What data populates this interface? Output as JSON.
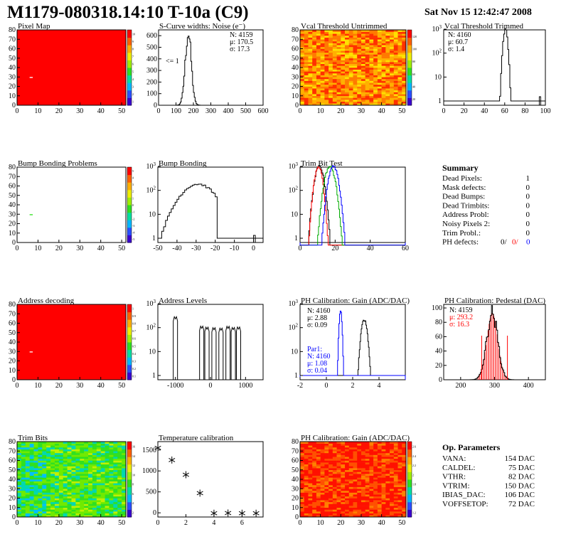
{
  "page": {
    "title": "M1179-080318.14:10 T-10a (C9)",
    "datestamp": "Sat Nov 15 12:42:47 2008"
  },
  "chart_data": [
    {
      "id": "pixel-map",
      "type": "heatmap",
      "title": "Pixel Map",
      "xlim": [
        0,
        52
      ],
      "ylim": [
        0,
        80
      ],
      "xticks": [
        0,
        10,
        20,
        30,
        40,
        50
      ],
      "yticks": [
        0,
        10,
        20,
        30,
        40,
        50,
        60,
        70,
        80
      ],
      "fill": "uniform-max",
      "dead_pixels": [
        [
          6,
          29
        ]
      ],
      "palette_ticks": [
        "10",
        "9",
        "8",
        "7",
        "6",
        "5",
        "4",
        "3",
        "2",
        "1"
      ]
    },
    {
      "id": "noise",
      "type": "line",
      "title": "S-Curve widths: Noise (e⁻)",
      "xlim": [
        0,
        600
      ],
      "log_y": false,
      "yticks": [
        0,
        100,
        200,
        300,
        400,
        500,
        600
      ],
      "xticks": [
        0,
        100,
        200,
        300,
        400,
        500,
        600
      ],
      "peak": {
        "mean": 170.5,
        "sigma": 17.3,
        "height": 620
      },
      "stats": {
        "entries_label": "N: 4159",
        "mean_label": "μ: 170.5",
        "sigma_label": "σ: 17.3"
      },
      "annotation": "<= 1"
    },
    {
      "id": "vcal-untrimmed",
      "type": "heatmap",
      "title": "Vcal Threshold Untrimmed",
      "xlim": [
        0,
        52
      ],
      "ylim": [
        0,
        80
      ],
      "xticks": [
        0,
        10,
        20,
        30,
        40,
        50
      ],
      "yticks": [
        0,
        10,
        20,
        30,
        40,
        50,
        60,
        70,
        80
      ],
      "fill": "noise-warm",
      "palette_ticks": [
        "120",
        "100",
        "80",
        "60",
        "40",
        "20"
      ]
    },
    {
      "id": "vcal-trimmed",
      "type": "line",
      "title": "Vcal Threshold Trimmed",
      "xlim": [
        0,
        100
      ],
      "log_y": true,
      "ylim_exp": [
        0,
        3
      ],
      "xticks": [
        0,
        20,
        40,
        60,
        80,
        100
      ],
      "peak": {
        "mean": 60.7,
        "sigma": 1.4,
        "height": 1500
      },
      "outliers": [
        [
          94,
          1
        ]
      ],
      "stats": {
        "entries_label": "N: 4160",
        "mean_label": "μ: 60.7",
        "sigma_label": "σ:  1.4"
      }
    },
    {
      "id": "bump-problems",
      "type": "heatmap",
      "title": "Bump Bonding Problems",
      "xlim": [
        0,
        52
      ],
      "ylim": [
        0,
        80
      ],
      "xticks": [
        0,
        10,
        20,
        30,
        40,
        50
      ],
      "yticks": [
        0,
        10,
        20,
        30,
        40,
        50,
        60,
        70,
        80
      ],
      "fill": "empty",
      "dead_pixels": [
        [
          6,
          29
        ]
      ],
      "palette_ticks": [
        "5",
        "4",
        "3",
        "2",
        "1",
        "0",
        "-1",
        "-2",
        "-3",
        "-4",
        "-5"
      ]
    },
    {
      "id": "bump-bonding",
      "type": "line",
      "title": "Bump Bonding",
      "xlim": [
        -50,
        5
      ],
      "log_y": true,
      "ylim_exp": [
        0,
        3
      ],
      "xticks": [
        -50,
        -40,
        -30,
        -20,
        -10,
        0
      ],
      "outliers": [
        [
          0,
          1
        ]
      ]
    },
    {
      "id": "trim-bit-test",
      "type": "line",
      "title": "Trim Bit Test",
      "xlim": [
        0,
        60
      ],
      "log_y": true,
      "ylim_exp": [
        0,
        3
      ],
      "xticks": [
        0,
        20,
        40,
        60
      ],
      "series": [
        {
          "color": "#000000",
          "mean": 11,
          "sigma": 1.6
        },
        {
          "color": "#ff0000",
          "mean": 10.5,
          "sigma": 1.4
        },
        {
          "color": "#00aa00",
          "mean": 17,
          "sigma": 1.8
        },
        {
          "color": "#0000ff",
          "mean": 19,
          "sigma": 1.7
        }
      ]
    },
    {
      "id": "address-decoding",
      "type": "heatmap",
      "title": "Address decoding",
      "xlim": [
        0,
        52
      ],
      "ylim": [
        0,
        80
      ],
      "xticks": [
        0,
        10,
        20,
        30,
        40,
        50
      ],
      "yticks": [
        0,
        10,
        20,
        30,
        40,
        50,
        60,
        70,
        80
      ],
      "fill": "uniform-max",
      "dead_pixels": [
        [
          6,
          29
        ]
      ],
      "palette_ticks": [
        "1",
        "0.9",
        "0.8",
        "0.7",
        "0.6",
        "0.5",
        "0.4",
        "0.3",
        "0.2",
        "0.1"
      ]
    },
    {
      "id": "address-levels",
      "type": "line",
      "title": "Address Levels",
      "xlim": [
        -1500,
        1500
      ],
      "log_y": true,
      "ylim_exp": [
        0,
        3
      ],
      "xticks": [
        -1000,
        0,
        1000
      ],
      "peaks": [
        -1000,
        -250,
        -100,
        100,
        300,
        500,
        650,
        800
      ]
    },
    {
      "id": "ph-gain",
      "type": "line",
      "title": "PH Calibration: Gain (ADC/DAC)",
      "xlim": [
        -2,
        6
      ],
      "log_y": true,
      "ylim_exp": [
        0,
        3
      ],
      "xticks": [
        -2,
        0,
        2,
        4
      ],
      "series": [
        {
          "color": "#000000",
          "mean": 2.88,
          "sigma": 0.09
        },
        {
          "color": "#0000ff",
          "mean": 1.08,
          "sigma": 0.04
        }
      ],
      "stats": {
        "entries_label": "N: 4160",
        "mean_label": "μ: 2.88",
        "sigma_label": "σ: 0.09"
      },
      "stats2": {
        "head_label": "Par1:",
        "entries_label": "N: 4160",
        "mean_label": "μ: 1.08",
        "sigma_label": "σ: 0.04"
      }
    },
    {
      "id": "ph-pedestal",
      "type": "line",
      "title": "PH Calibration: Pedestal (DAC)",
      "xlim": [
        150,
        450
      ],
      "log_y": false,
      "yticks": [
        0,
        20,
        40,
        60,
        80,
        100
      ],
      "xticks": [
        200,
        300,
        400
      ],
      "peak": {
        "mean": 293.2,
        "sigma": 16.3,
        "height": 93
      },
      "stats": {
        "entries_label": "N: 4159",
        "mean_label": "μ: 293.2",
        "sigma_label": "σ: 16.3"
      }
    },
    {
      "id": "trim-bits",
      "type": "heatmap",
      "title": "Trim Bits",
      "xlim": [
        0,
        52
      ],
      "ylim": [
        0,
        80
      ],
      "xticks": [
        0,
        10,
        20,
        30,
        40,
        50
      ],
      "yticks": [
        0,
        10,
        20,
        30,
        40,
        50,
        60,
        70,
        80
      ],
      "fill": "noise-green",
      "palette_ticks": [
        "16",
        "14",
        "12",
        "10",
        "8",
        "6",
        "4",
        "2"
      ]
    },
    {
      "id": "temp-calib",
      "type": "scatter",
      "title": "Temperature calibration",
      "xlim": [
        0,
        7.5
      ],
      "ylim": [
        -100,
        1700
      ],
      "yticks": [
        0,
        500,
        1000,
        1500
      ],
      "xticks": [
        0,
        2,
        4,
        6
      ],
      "x": [
        0,
        1,
        2,
        3,
        4,
        5,
        6,
        7
      ],
      "y": [
        1550,
        1260,
        910,
        470,
        -10,
        -5,
        -10,
        -10
      ]
    },
    {
      "id": "ph-gain-map",
      "type": "heatmap",
      "title": "PH Calibration: Gain (ADC/DAC)",
      "xlim": [
        0,
        52
      ],
      "ylim": [
        0,
        80
      ],
      "xticks": [
        0,
        10,
        20,
        30,
        40,
        50
      ],
      "yticks": [
        0,
        10,
        20,
        30,
        40,
        50,
        60,
        70,
        80
      ],
      "fill": "noise-redorange",
      "palette_ticks": [
        "2.6",
        "2.4",
        "2.2",
        "2",
        "1.8",
        "1.6",
        "1.4",
        "1.2"
      ]
    }
  ],
  "summary": {
    "title": "Summary",
    "rows": [
      {
        "label": "Dead Pixels:",
        "value": "1"
      },
      {
        "label": "Mask defects:",
        "value": "0"
      },
      {
        "label": "Dead Bumps:",
        "value": "0"
      },
      {
        "label": "Dead Trimbits:",
        "value": "0"
      },
      {
        "label": "Address Probl:",
        "value": "0"
      },
      {
        "label": "Noisy Pixels 2:",
        "value": "0"
      },
      {
        "label": "Trim Probl.:",
        "value": "0"
      }
    ],
    "ph_label": "PH defects:",
    "ph_values": [
      {
        "text": "0/",
        "color": "#000000"
      },
      {
        "text": "0/",
        "color": "#ff0000"
      },
      {
        "text": "0",
        "color": "#0000ff"
      }
    ]
  },
  "op_params": {
    "title": "Op. Parameters",
    "rows": [
      {
        "label": "VANA:",
        "value": "154 DAC"
      },
      {
        "label": "CALDEL:",
        "value": "75 DAC"
      },
      {
        "label": "VTHR:",
        "value": "82 DAC"
      },
      {
        "label": "VTRIM:",
        "value": "150 DAC"
      },
      {
        "label": "IBIAS_DAC:",
        "value": "106 DAC"
      },
      {
        "label": "VOFFSETOP:",
        "value": "72 DAC"
      }
    ]
  }
}
